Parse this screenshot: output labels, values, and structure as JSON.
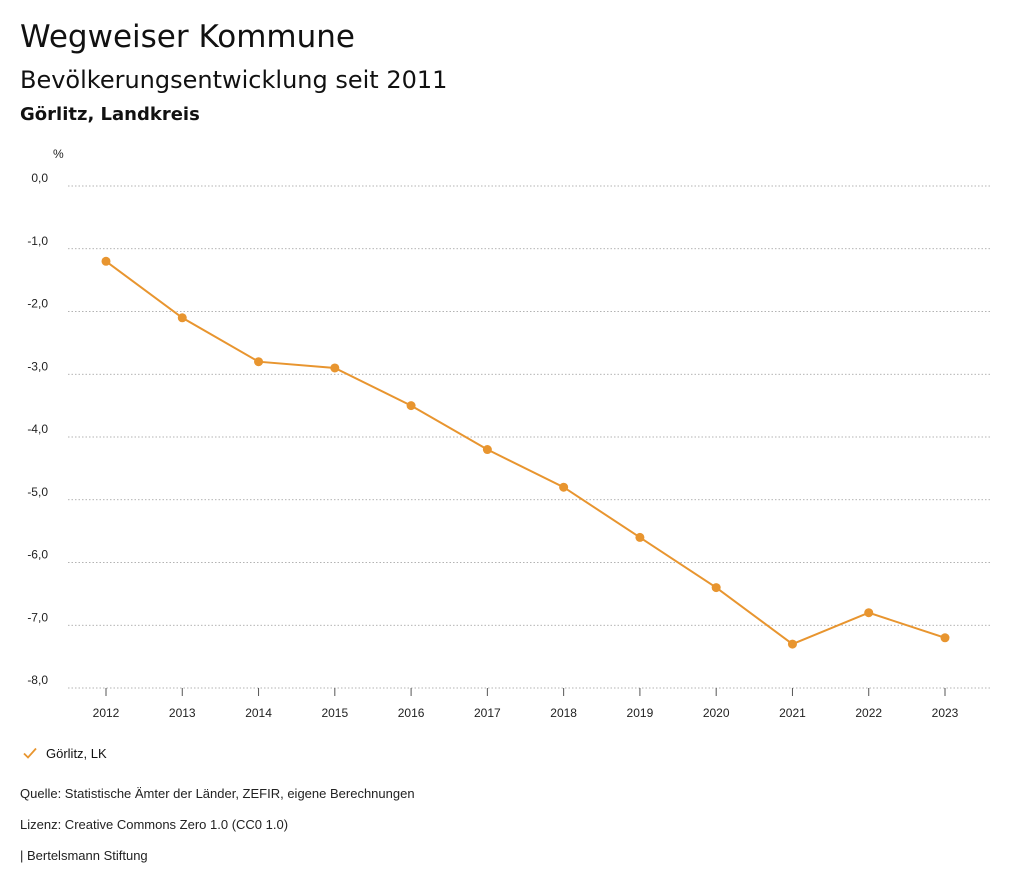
{
  "header": {
    "title": "Wegweiser Kommune",
    "subtitle": "Bevölkerungsentwicklung seit 2011",
    "region": "Görlitz, Landkreis"
  },
  "chart_data": {
    "type": "line",
    "ylabel": "%",
    "ylim": [
      -8.0,
      0.0
    ],
    "yticks": [
      0.0,
      -1.0,
      -2.0,
      -3.0,
      -4.0,
      -5.0,
      -6.0,
      -7.0,
      -8.0
    ],
    "ytick_labels": [
      "0,0",
      "-1,0",
      "-2,0",
      "-3,0",
      "-4,0",
      "-5,0",
      "-6,0",
      "-7,0",
      "-8,0"
    ],
    "x": [
      "2012",
      "2013",
      "2014",
      "2015",
      "2016",
      "2017",
      "2018",
      "2019",
      "2020",
      "2021",
      "2022",
      "2023"
    ],
    "grid": true,
    "legend": "bottom-left",
    "series": [
      {
        "name": "Görlitz, LK",
        "color": "#E8952F",
        "values": [
          -1.2,
          -2.1,
          -2.8,
          -2.9,
          -3.5,
          -4.2,
          -4.8,
          -5.6,
          -6.4,
          -7.3,
          -6.8,
          -7.2
        ]
      }
    ]
  },
  "legend": {
    "icon": "check-icon",
    "label": "Görlitz, LK"
  },
  "footer": {
    "source": "Quelle: Statistische Ämter der Länder, ZEFIR, eigene Berechnungen",
    "license": "Lizenz: Creative Commons Zero 1.0 (CC0 1.0)",
    "organization": "| Bertelsmann Stiftung"
  }
}
